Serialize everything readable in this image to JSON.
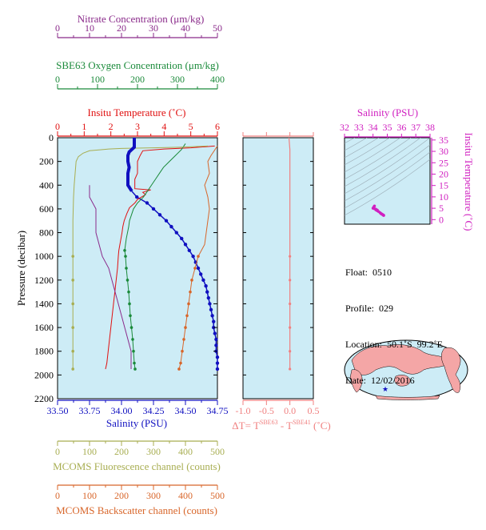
{
  "colors": {
    "nitrate": "#8a2a8a",
    "oxygen": "#1a8a3a",
    "temperature": "#e01010",
    "salinity": "#1010c0",
    "fluorescence": "#a8ae52",
    "backscatter": "#d8662a",
    "deltaT": "#f08080",
    "ts": "#d020c0",
    "panel_bg": "#cdecf6"
  },
  "axes": {
    "nitrate": {
      "label": "Nitrate Concentration (μm/kg)",
      "ticks": [
        "0",
        "10",
        "20",
        "30",
        "40",
        "50"
      ],
      "range": [
        0,
        50
      ]
    },
    "oxygen": {
      "label": "SBE63 Oxygen Concentration (μm/kg)",
      "ticks": [
        "0",
        "100",
        "200",
        "300",
        "400"
      ],
      "range": [
        0,
        400
      ]
    },
    "temperature": {
      "label": "Insitu Temperature (˚C)",
      "ticks": [
        "0",
        "1",
        "2",
        "3",
        "4",
        "5",
        "6"
      ],
      "range": [
        0,
        6
      ]
    },
    "salinity": {
      "label": "Salinity (PSU)",
      "ticks": [
        "33.50",
        "33.75",
        "34.00",
        "34.25",
        "34.50",
        "34.75"
      ],
      "range": [
        33.5,
        34.75
      ]
    },
    "pressure": {
      "label": "Pressure (decibar)",
      "ticks": [
        "0",
        "200",
        "400",
        "600",
        "800",
        "1000",
        "1200",
        "1400",
        "1600",
        "1800",
        "2000",
        "2200"
      ],
      "range": [
        0,
        2200
      ]
    },
    "deltaT": {
      "label_prefix": "ΔT= T",
      "label_sup1": "SBE63",
      "label_mid": " - T",
      "label_sup2": "SBE41",
      "label_suffix": " (˚C)",
      "ticks": [
        "-1.0",
        "-0.5",
        "0.0",
        "0.5"
      ],
      "range": [
        -1,
        0.5
      ]
    },
    "fluorescence": {
      "label": "MCOMS Fluorescence channel (counts)",
      "ticks": [
        "0",
        "100",
        "200",
        "300",
        "400",
        "500"
      ],
      "range": [
        0,
        500
      ]
    },
    "backscatter": {
      "label": "MCOMS Backscatter channel (counts)",
      "ticks": [
        "0",
        "100",
        "200",
        "300",
        "400",
        "500"
      ],
      "range": [
        0,
        500
      ]
    },
    "ts_salinity": {
      "label": "Salinity (PSU)",
      "ticks": [
        "32",
        "33",
        "34",
        "35",
        "36",
        "37",
        "38"
      ],
      "range": [
        32,
        38
      ]
    },
    "ts_temperature": {
      "label": "Insitu Temperature (˚C)",
      "ticks": [
        "0",
        "5",
        "10",
        "15",
        "20",
        "25",
        "30",
        "35"
      ],
      "range": [
        -2,
        36
      ]
    }
  },
  "info": {
    "float": "Float:  0510",
    "profile": "Profile:  029",
    "location": "Location:  50.1˚S  99.2˚E",
    "date": "Date:  12/02/2016"
  },
  "chart_data": [
    {
      "type": "line",
      "title": "",
      "panel": "profiles",
      "series": [
        {
          "name": "Salinity",
          "points": [
            [
              34.1,
              0
            ],
            [
              34.1,
              40
            ],
            [
              34.1,
              80
            ],
            [
              34.08,
              100
            ],
            [
              34.06,
              120
            ],
            [
              34.05,
              150
            ],
            [
              34.05,
              200
            ],
            [
              34.06,
              250
            ],
            [
              34.05,
              300
            ],
            [
              34.05,
              350
            ],
            [
              34.05,
              400
            ],
            [
              34.08,
              450
            ],
            [
              34.12,
              500
            ],
            [
              34.2,
              550
            ],
            [
              34.25,
              600
            ],
            [
              34.3,
              650
            ],
            [
              34.35,
              700
            ],
            [
              34.39,
              750
            ],
            [
              34.43,
              800
            ],
            [
              34.47,
              850
            ],
            [
              34.5,
              900
            ],
            [
              34.53,
              950
            ],
            [
              34.56,
              1000
            ],
            [
              34.58,
              1050
            ],
            [
              34.6,
              1100
            ],
            [
              34.62,
              1150
            ],
            [
              34.64,
              1200
            ],
            [
              34.66,
              1250
            ],
            [
              34.67,
              1300
            ],
            [
              34.68,
              1350
            ],
            [
              34.69,
              1400
            ],
            [
              34.7,
              1450
            ],
            [
              34.71,
              1500
            ],
            [
              34.72,
              1550
            ],
            [
              34.72,
              1600
            ],
            [
              34.73,
              1650
            ],
            [
              34.74,
              1700
            ],
            [
              34.74,
              1750
            ],
            [
              34.74,
              1800
            ],
            [
              34.75,
              1850
            ],
            [
              34.75,
              1900
            ],
            [
              34.75,
              1950
            ]
          ]
        },
        {
          "name": "Temperature",
          "points": [
            [
              5.9,
              70
            ],
            [
              5.0,
              85
            ],
            [
              4.0,
              95
            ],
            [
              3.2,
              110
            ],
            [
              3.1,
              150
            ],
            [
              3.0,
              200
            ],
            [
              3.0,
              250
            ],
            [
              3.0,
              300
            ],
            [
              2.9,
              350
            ],
            [
              2.9,
              400
            ],
            [
              2.9,
              430
            ],
            [
              3.5,
              440
            ],
            [
              3.2,
              460
            ],
            [
              3.3,
              480
            ],
            [
              3.0,
              520
            ],
            [
              2.9,
              550
            ],
            [
              2.7,
              590
            ],
            [
              2.6,
              640
            ],
            [
              2.5,
              700
            ],
            [
              2.45,
              750
            ],
            [
              2.42,
              800
            ],
            [
              2.38,
              850
            ],
            [
              2.34,
              900
            ],
            [
              2.3,
              950
            ],
            [
              2.28,
              1000
            ],
            [
              2.25,
              1100
            ],
            [
              2.2,
              1200
            ],
            [
              2.15,
              1300
            ],
            [
              2.1,
              1400
            ],
            [
              2.05,
              1500
            ],
            [
              2.0,
              1600
            ],
            [
              1.95,
              1700
            ],
            [
              1.9,
              1800
            ],
            [
              1.85,
              1900
            ],
            [
              1.8,
              1950
            ]
          ]
        },
        {
          "name": "Oxygen",
          "points": [
            [
              320,
              50
            ],
            [
              310,
              100
            ],
            [
              295,
              150
            ],
            [
              280,
              200
            ],
            [
              265,
              250
            ],
            [
              255,
              300
            ],
            [
              245,
              350
            ],
            [
              235,
              400
            ],
            [
              225,
              450
            ],
            [
              215,
              500
            ],
            [
              200,
              550
            ],
            [
              190,
              600
            ],
            [
              185,
              650
            ],
            [
              180,
              700
            ],
            [
              178,
              750
            ],
            [
              175,
              800
            ],
            [
              172,
              850
            ],
            [
              170,
              900
            ],
            [
              168,
              950
            ],
            [
              170,
              1000
            ],
            [
              172,
              1100
            ],
            [
              175,
              1200
            ],
            [
              178,
              1300
            ],
            [
              180,
              1400
            ],
            [
              182,
              1500
            ],
            [
              185,
              1600
            ],
            [
              188,
              1700
            ],
            [
              190,
              1800
            ],
            [
              192,
              1900
            ],
            [
              194,
              1950
            ]
          ]
        },
        {
          "name": "Nitrate",
          "points": [
            [
              10,
              400
            ],
            [
              10,
              450
            ],
            [
              10,
              500
            ],
            [
              12,
              600
            ],
            [
              12,
              700
            ],
            [
              12,
              800
            ],
            [
              13,
              900
            ],
            [
              14,
              1000
            ],
            [
              16,
              1100
            ],
            [
              17,
              1200
            ],
            [
              18,
              1300
            ],
            [
              19,
              1400
            ],
            [
              20,
              1500
            ],
            [
              21,
              1600
            ],
            [
              22,
              1700
            ],
            [
              23,
              1800
            ],
            [
              23,
              1900
            ],
            [
              23,
              1950
            ]
          ]
        },
        {
          "name": "Fluorescence",
          "points": [
            [
              470,
              70
            ],
            [
              380,
              80
            ],
            [
              300,
              85
            ],
            [
              200,
              90
            ],
            [
              160,
              95
            ],
            [
              140,
              100
            ],
            [
              100,
              110
            ],
            [
              80,
              130
            ],
            [
              65,
              160
            ],
            [
              58,
              200
            ],
            [
              55,
              300
            ],
            [
              52,
              400
            ],
            [
              50,
              500
            ],
            [
              48,
              700
            ],
            [
              48,
              1000
            ],
            [
              48,
              1200
            ],
            [
              48,
              1400
            ],
            [
              48,
              1600
            ],
            [
              48,
              1800
            ],
            [
              48,
              1950
            ]
          ]
        },
        {
          "name": "Backscatter",
          "points": [
            [
              500,
              70
            ],
            [
              480,
              150
            ],
            [
              470,
              200
            ],
            [
              475,
              300
            ],
            [
              460,
              400
            ],
            [
              470,
              500
            ],
            [
              475,
              600
            ],
            [
              470,
              700
            ],
            [
              465,
              800
            ],
            [
              460,
              900
            ],
            [
              440,
              1000
            ],
            [
              430,
              1100
            ],
            [
              420,
              1200
            ],
            [
              415,
              1300
            ],
            [
              410,
              1400
            ],
            [
              405,
              1500
            ],
            [
              400,
              1600
            ],
            [
              395,
              1700
            ],
            [
              390,
              1800
            ],
            [
              385,
              1900
            ],
            [
              380,
              1950
            ]
          ]
        }
      ]
    },
    {
      "type": "line",
      "title": "",
      "panel": "deltaT",
      "series": [
        {
          "name": "ΔT",
          "points": [
            [
              -0.02,
              0
            ],
            [
              0.0,
              100
            ],
            [
              0.0,
              200
            ],
            [
              0.0,
              400
            ],
            [
              0.0,
              600
            ],
            [
              0.0,
              800
            ],
            [
              0.0,
              1000
            ],
            [
              0.0,
              1200
            ],
            [
              0.0,
              1400
            ],
            [
              0.0,
              1600
            ],
            [
              0.0,
              1800
            ],
            [
              0.0,
              1950
            ]
          ]
        }
      ]
    },
    {
      "type": "scatter",
      "title": "",
      "panel": "ts",
      "series": [
        {
          "name": "T-S",
          "points": [
            [
              34.1,
              6.0
            ],
            [
              34.05,
              5.5
            ],
            [
              34.0,
              5.0
            ],
            [
              34.1,
              4.8
            ],
            [
              34.2,
              4.3
            ],
            [
              34.3,
              3.9
            ],
            [
              34.4,
              3.5
            ],
            [
              34.5,
              3.0
            ],
            [
              34.55,
              2.7
            ],
            [
              34.6,
              2.5
            ],
            [
              34.65,
              2.3
            ],
            [
              34.7,
              2.1
            ],
            [
              34.72,
              2.0
            ],
            [
              34.74,
              1.9
            ],
            [
              34.75,
              1.85
            ],
            [
              34.2,
              4.6
            ],
            [
              34.3,
              4.2
            ]
          ]
        }
      ]
    }
  ]
}
